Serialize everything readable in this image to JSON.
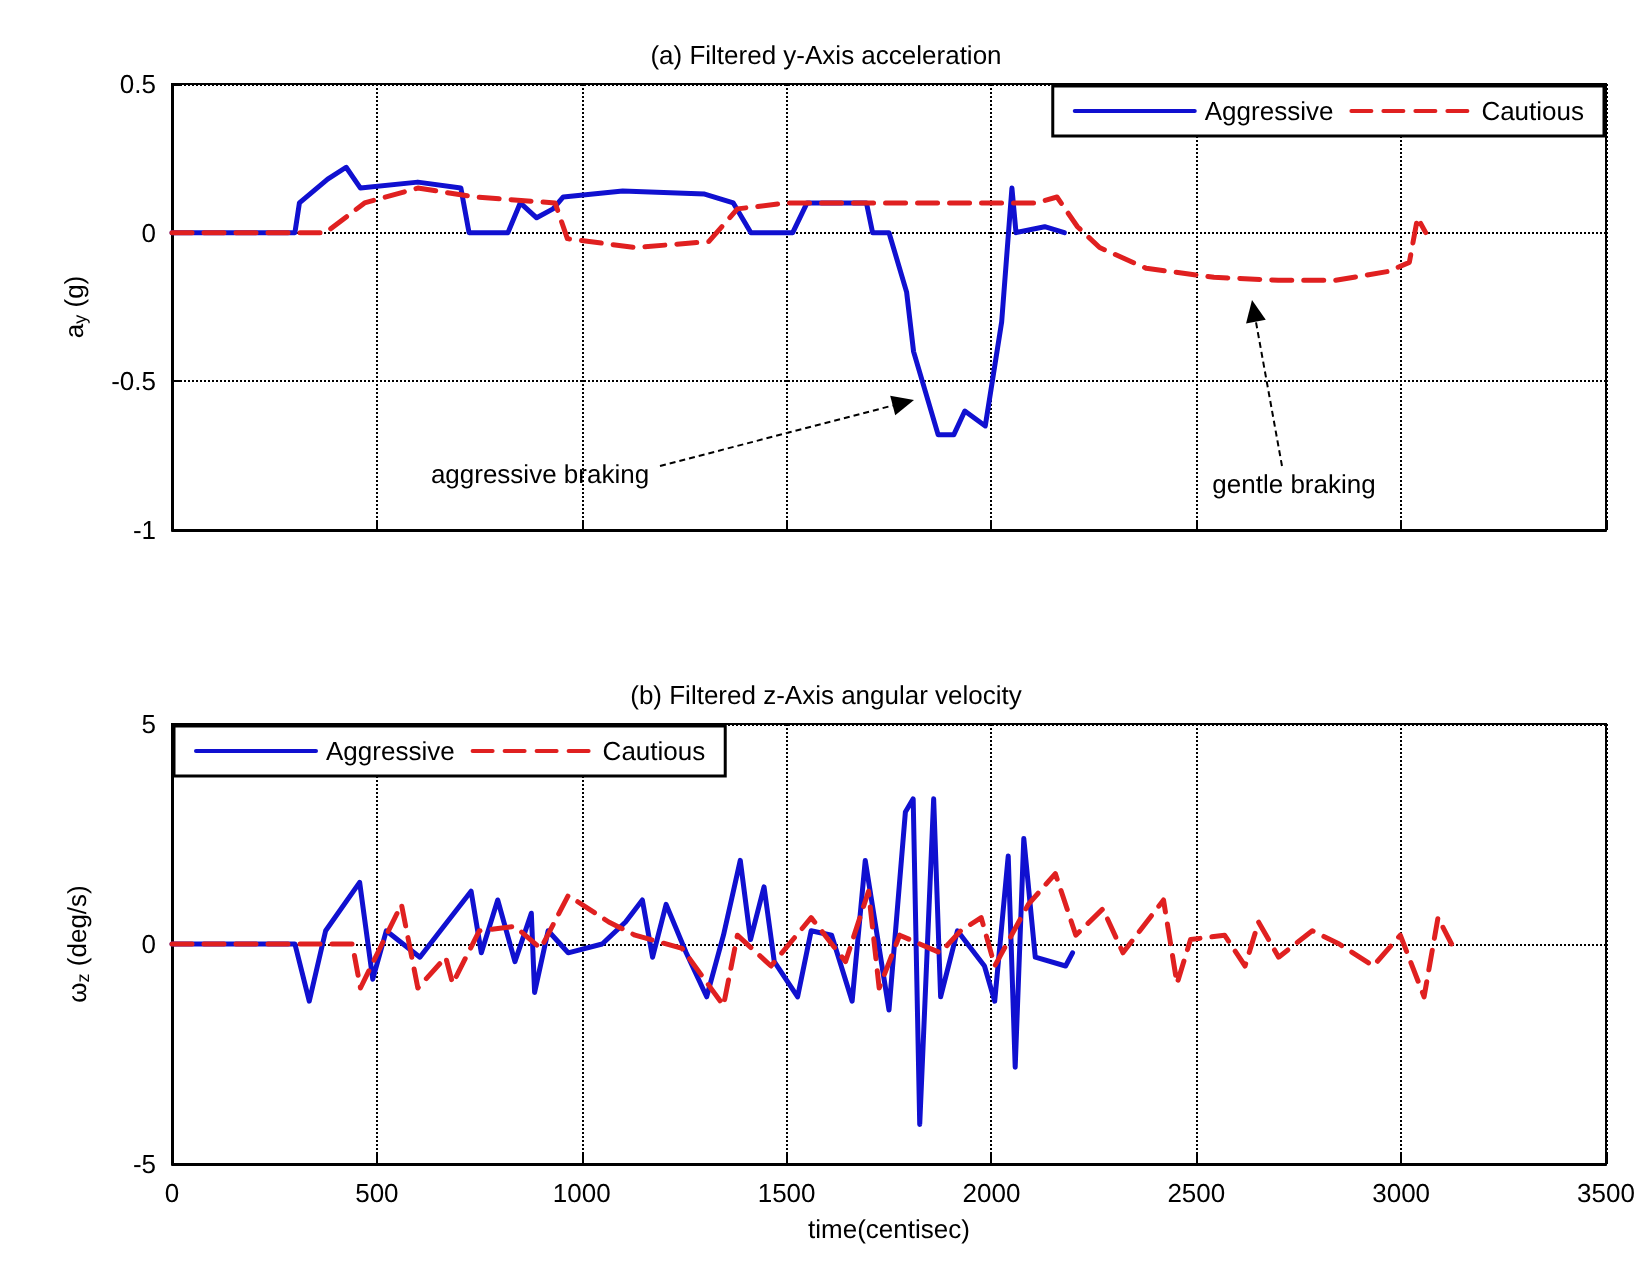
{
  "chart_data": [
    {
      "type": "line",
      "title": "(a) Filtered y-Axis acceleration",
      "ylabel": "a$_{y}$ (g)",
      "xlim": [
        0,
        3500
      ],
      "xticks": [
        0,
        500,
        1000,
        1500,
        2000,
        2500,
        3000,
        3500
      ],
      "ylim": [
        -1,
        0.5
      ],
      "yticks": [
        -1,
        -0.5,
        0,
        0.5
      ],
      "grid": true,
      "legend": "top right",
      "tick_labels": "y",
      "marker": "none",
      "annotations": [
        "aggressive braking",
        "gentle braking"
      ],
      "series": [
        {
          "name": "Aggressive",
          "color": "#1010d0",
          "line_style": "solid",
          "x": [
            0,
            300,
            311,
            380,
            425,
            460,
            600,
            705,
            725,
            820,
            850,
            890,
            930,
            955,
            1100,
            1300,
            1370,
            1413,
            1515,
            1550,
            1695,
            1710,
            1750,
            1793,
            1810,
            1870,
            1908,
            1935,
            1985,
            2025,
            2050,
            2060,
            2130,
            2178
          ],
          "values": [
            0,
            0,
            0.1,
            0.18,
            0.22,
            0.15,
            0.17,
            0.15,
            0,
            0,
            0.1,
            0.05,
            0.08,
            0.12,
            0.14,
            0.13,
            0.1,
            0,
            0,
            0.1,
            0.1,
            0,
            0,
            -0.2,
            -0.4,
            -0.68,
            -0.68,
            -0.6,
            -0.65,
            -0.3,
            0.15,
            0,
            0.02,
            0
          ]
        },
        {
          "name": "Cautious",
          "color": "#e02020",
          "line_style": "dashed",
          "x": [
            0,
            375,
            470,
            600,
            740,
            935,
            965,
            1130,
            1310,
            1380,
            1500,
            1800,
            2110,
            2160,
            2210,
            2264,
            2378,
            2543,
            2700,
            2840,
            2970,
            3020,
            3040,
            3060
          ],
          "values": [
            0,
            0,
            0.1,
            0.15,
            0.12,
            0.1,
            -0.02,
            -0.05,
            -0.03,
            0.08,
            0.1,
            0.1,
            0.1,
            0.12,
            0.02,
            -0.05,
            -0.12,
            -0.15,
            -0.16,
            -0.16,
            -0.13,
            -0.1,
            0.05,
            0
          ]
        }
      ]
    },
    {
      "type": "line",
      "title": "(b) Filtered z-Axis angular velocity",
      "xlabel": "time(centisec)",
      "ylabel": "ω$_{z}$ (deg/s)",
      "xlim": [
        0,
        3500
      ],
      "xticks": [
        0,
        500,
        1000,
        1500,
        2000,
        2500,
        3000,
        3500
      ],
      "ylim": [
        -5,
        5
      ],
      "yticks": [
        -5,
        0,
        5
      ],
      "grid": true,
      "legend": "top left",
      "marker": "none",
      "series": [
        {
          "name": "Aggressive",
          "color": "#1010d0",
          "line_style": "solid",
          "x": [
            0,
            300,
            335,
            375,
            458,
            490,
            523,
            605,
            655,
            730,
            755,
            795,
            837,
            877,
            885,
            918,
            967,
            1050,
            1107,
            1148,
            1173,
            1206,
            1255,
            1305,
            1346,
            1387,
            1412,
            1445,
            1470,
            1527,
            1560,
            1610,
            1660,
            1692,
            1750,
            1790,
            1809,
            1825,
            1859,
            1876,
            1917,
            1983,
            2008,
            2041,
            2058,
            2079,
            2107,
            2181,
            2198
          ],
          "values": [
            0,
            0,
            -1.3,
            0.3,
            1.4,
            -0.8,
            0.3,
            -0.3,
            0.3,
            1.2,
            -0.2,
            1,
            -0.4,
            0.7,
            -1.1,
            0.3,
            -0.2,
            0,
            0.5,
            1,
            -0.3,
            0.9,
            -0.2,
            -1.2,
            0.2,
            1.9,
            0.1,
            1.3,
            -0.4,
            -1.2,
            0.3,
            0.2,
            -1.3,
            1.9,
            -1.5,
            3,
            3.3,
            -4.1,
            3.3,
            -1.2,
            0.3,
            -0.5,
            -1.3,
            2,
            -2.8,
            2.4,
            -0.3,
            -0.5,
            -0.2
          ]
        },
        {
          "name": "Cautious",
          "color": "#e02020",
          "line_style": "dashed",
          "x": [
            0,
            440,
            460,
            560,
            600,
            668,
            685,
            750,
            837,
            900,
            967,
            1017,
            1066,
            1130,
            1245,
            1346,
            1380,
            1462,
            1560,
            1644,
            1700,
            1726,
            1776,
            1875,
            1925,
            1975,
            2008,
            2090,
            2156,
            2206,
            2272,
            2321,
            2420,
            2453,
            2486,
            2569,
            2619,
            2652,
            2701,
            2783,
            2849,
            2932,
            2998,
            3056,
            3090,
            3123
          ],
          "values": [
            0,
            0,
            -1,
            0.9,
            -1,
            -0.3,
            -0.9,
            0.3,
            0.4,
            -0.1,
            1.1,
            0.8,
            0.5,
            0.2,
            -0.1,
            -1.4,
            0.2,
            -0.5,
            0.6,
            -0.4,
            1.2,
            -1,
            0.2,
            -0.2,
            0.3,
            0.6,
            -0.5,
            0.9,
            1.6,
            0.2,
            0.8,
            -0.2,
            1,
            -0.9,
            0.1,
            0.2,
            -0.5,
            0.5,
            -0.3,
            0.3,
            0,
            -0.5,
            0.2,
            -1.2,
            0.6,
            0
          ]
        }
      ]
    }
  ]
}
